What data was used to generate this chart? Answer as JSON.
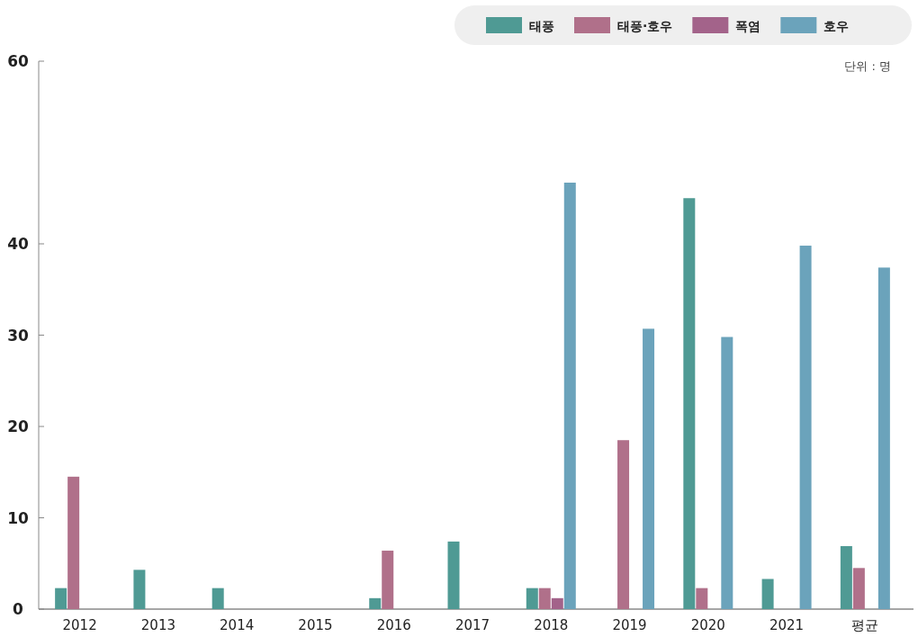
{
  "chart_data": {
    "type": "bar",
    "categories": [
      "2012",
      "2013",
      "2014",
      "2015",
      "2016",
      "2017",
      "2018",
      "2019",
      "2020",
      "2021",
      "평균"
    ],
    "series": [
      {
        "name": "태풍",
        "color": "#4f9a94",
        "values": [
          2.3,
          4.3,
          2.3,
          0,
          1.2,
          7.4,
          2.3,
          0,
          45.0,
          3.3,
          6.9
        ]
      },
      {
        "name": "태풍·호우",
        "color": "#b0708a",
        "values": [
          14.5,
          0,
          0,
          0,
          6.4,
          0,
          2.3,
          18.5,
          2.3,
          0,
          4.5
        ]
      },
      {
        "name": "폭염",
        "color": "#a3638a",
        "values": [
          0,
          0,
          0,
          0,
          0,
          0,
          1.2,
          0,
          0,
          0,
          0
        ]
      },
      {
        "name": "호우",
        "color": "#6ba3bb",
        "values": [
          0,
          0,
          0,
          0,
          0,
          0,
          46.7,
          30.7,
          29.8,
          39.8,
          37.4
        ]
      }
    ],
    "ylim": [
      0,
      60
    ],
    "yticks": [
      0,
      10,
      20,
      30,
      40,
      60
    ],
    "legend": "top right",
    "annotations": [
      "단위 : 명"
    ]
  }
}
